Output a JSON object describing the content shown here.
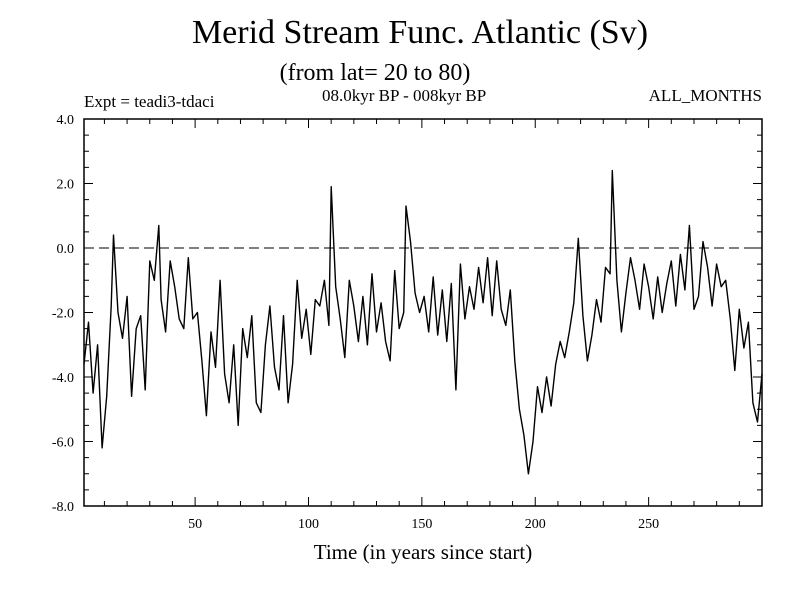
{
  "chart_data": {
    "type": "line",
    "title": "Merid Stream Func. Atlantic (Sv)",
    "subtitle": "(from lat= 20 to 80)",
    "left_label": "Expt = teadi3-tdaci",
    "center_label": "08.0kyr BP - 008kyr BP",
    "right_label": "ALL_MONTHS",
    "xlabel": "Time (in years since start)",
    "ylabel": "",
    "xlim": [
      1,
      300
    ],
    "ylim": [
      -8.0,
      4.0
    ],
    "x_ticks": [
      50,
      100,
      150,
      200,
      250
    ],
    "x_tick_labels": [
      "50",
      "100",
      "150",
      "200",
      "250"
    ],
    "y_ticks": [
      -8.0,
      -6.0,
      -4.0,
      -2.0,
      0.0,
      2.0,
      4.0
    ],
    "y_tick_labels": [
      "-8.0",
      "-6.0",
      "-4.0",
      "-2.0",
      "0.0",
      "2.0",
      "4.0"
    ],
    "reference_line": 0.0,
    "series": [
      {
        "name": "Merid Stream Func. Atlantic",
        "x": [
          1,
          3,
          5,
          7,
          9,
          11,
          13,
          14,
          16,
          18,
          20,
          22,
          24,
          26,
          28,
          30,
          32,
          34,
          35,
          37,
          39,
          41,
          43,
          45,
          47,
          49,
          51,
          53,
          55,
          57,
          59,
          61,
          63,
          65,
          67,
          69,
          71,
          73,
          75,
          77,
          79,
          81,
          83,
          85,
          87,
          89,
          91,
          93,
          95,
          97,
          99,
          101,
          103,
          105,
          107,
          109,
          110,
          112,
          114,
          116,
          118,
          120,
          122,
          124,
          126,
          128,
          130,
          132,
          134,
          136,
          138,
          140,
          142,
          143,
          145,
          147,
          149,
          151,
          153,
          155,
          157,
          159,
          161,
          163,
          165,
          167,
          169,
          171,
          173,
          175,
          177,
          179,
          181,
          183,
          185,
          187,
          189,
          191,
          193,
          195,
          197,
          199,
          201,
          203,
          205,
          207,
          209,
          211,
          213,
          215,
          217,
          219,
          221,
          223,
          225,
          227,
          229,
          231,
          233,
          234,
          236,
          238,
          240,
          242,
          244,
          246,
          248,
          250,
          252,
          254,
          256,
          258,
          260,
          262,
          264,
          266,
          268,
          270,
          272,
          274,
          276,
          278,
          280,
          282,
          284,
          286,
          288,
          290,
          292,
          294,
          296,
          298,
          300
        ],
        "values": [
          -3.6,
          -2.3,
          -4.5,
          -3.0,
          -6.2,
          -4.6,
          -1.8,
          0.4,
          -2.0,
          -2.8,
          -1.5,
          -4.6,
          -2.5,
          -2.1,
          -4.4,
          -0.4,
          -1.0,
          0.7,
          -1.6,
          -2.6,
          -0.4,
          -1.2,
          -2.2,
          -2.5,
          -0.3,
          -2.2,
          -2.0,
          -3.5,
          -5.2,
          -2.6,
          -3.7,
          -1.0,
          -3.9,
          -4.8,
          -3.0,
          -5.5,
          -2.5,
          -3.4,
          -2.1,
          -4.8,
          -5.1,
          -3.0,
          -1.8,
          -3.7,
          -4.4,
          -2.1,
          -4.8,
          -3.6,
          -1.0,
          -2.8,
          -1.9,
          -3.3,
          -1.6,
          -1.8,
          -1.0,
          -2.4,
          1.9,
          -1.2,
          -2.2,
          -3.4,
          -1.0,
          -1.8,
          -2.9,
          -1.5,
          -3.0,
          -0.8,
          -2.6,
          -1.7,
          -2.9,
          -3.5,
          -0.7,
          -2.5,
          -2.0,
          1.3,
          0.2,
          -1.4,
          -2.0,
          -1.5,
          -2.6,
          -0.9,
          -2.7,
          -1.3,
          -2.9,
          -1.1,
          -4.4,
          -0.5,
          -2.2,
          -1.2,
          -1.9,
          -0.6,
          -1.7,
          -0.3,
          -2.1,
          -0.4,
          -1.9,
          -2.4,
          -1.3,
          -3.5,
          -5.0,
          -5.8,
          -7.0,
          -6.0,
          -4.3,
          -5.1,
          -4.0,
          -4.9,
          -3.6,
          -2.9,
          -3.4,
          -2.6,
          -1.7,
          0.3,
          -2.1,
          -3.5,
          -2.7,
          -1.6,
          -2.3,
          -0.6,
          -0.8,
          2.4,
          -1.0,
          -2.6,
          -1.4,
          -0.3,
          -1.0,
          -1.9,
          -0.5,
          -1.2,
          -2.2,
          -0.9,
          -2.0,
          -1.1,
          -0.4,
          -1.8,
          -0.2,
          -1.3,
          0.7,
          -1.9,
          -1.5,
          0.2,
          -0.6,
          -1.8,
          -0.5,
          -1.2,
          -1.0,
          -2.2,
          -3.8,
          -1.9,
          -3.1,
          -2.3,
          -4.8,
          -5.4,
          -3.9
        ]
      }
    ]
  }
}
